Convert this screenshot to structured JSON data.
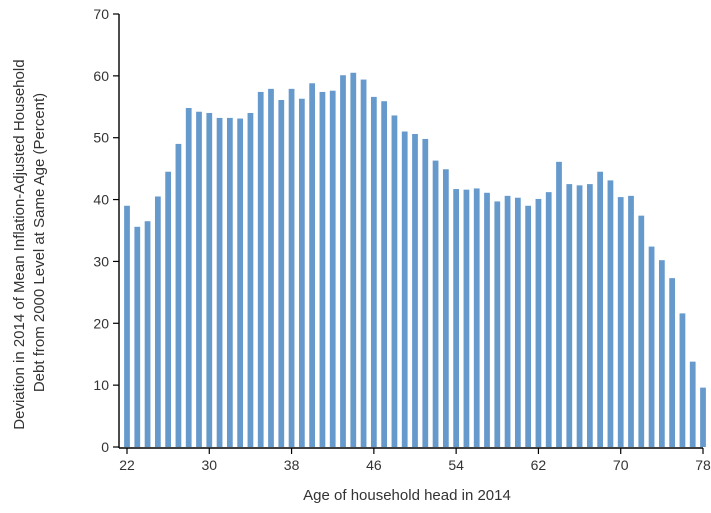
{
  "chart_data": {
    "type": "bar",
    "title": "",
    "xlabel": "Age of household head in 2014",
    "ylabel_lines": [
      "Deviation in 2014 of Mean Inflation-Adjusted Household",
      "Debt from 2000 Level at Same Age (Percent)"
    ],
    "x": [
      22,
      23,
      24,
      25,
      26,
      27,
      28,
      29,
      30,
      31,
      32,
      33,
      34,
      35,
      36,
      37,
      38,
      39,
      40,
      41,
      42,
      43,
      44,
      45,
      46,
      47,
      48,
      49,
      50,
      51,
      52,
      53,
      54,
      55,
      56,
      57,
      58,
      59,
      60,
      61,
      62,
      63,
      64,
      65,
      66,
      67,
      68,
      69,
      70,
      71,
      72,
      73,
      74,
      75,
      76,
      77,
      78
    ],
    "values": [
      39,
      35.6,
      36.5,
      40.5,
      44.5,
      49,
      54.8,
      54.2,
      54,
      53.2,
      53.2,
      53.1,
      54,
      57.4,
      57.9,
      56.1,
      57.9,
      56.3,
      58.8,
      57.4,
      57.6,
      60.1,
      60.5,
      59.4,
      56.6,
      55.9,
      53.6,
      51,
      50.6,
      49.8,
      46.3,
      44.9,
      41.7,
      41.6,
      41.8,
      41.1,
      39.7,
      40.6,
      40.3,
      39,
      40.1,
      41.2,
      46.1,
      42.5,
      42.3,
      42.5,
      44.5,
      43.1,
      40.4,
      40.6,
      37.4,
      32.4,
      30.2,
      27.3,
      21.6,
      13.8,
      9.6
    ],
    "xticks": [
      22,
      30,
      38,
      46,
      54,
      62,
      70,
      78
    ],
    "yticks": [
      0,
      10,
      20,
      30,
      40,
      50,
      60,
      70
    ],
    "xlim": [
      22,
      78
    ],
    "ylim": [
      0,
      70
    ],
    "grid": false,
    "bar_color": "#6699cc",
    "axis_color": "#000000"
  }
}
